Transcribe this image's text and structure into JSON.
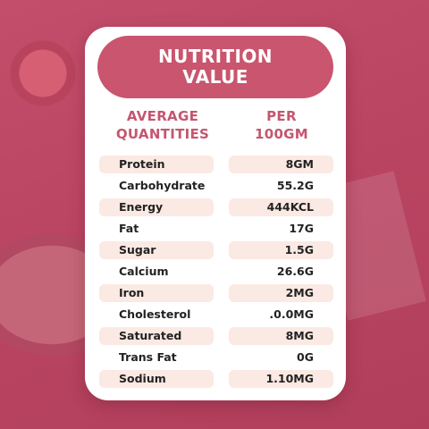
{
  "title": {
    "line1": "NUTRITION",
    "line2": "VALUE"
  },
  "headers": {
    "left_line1": "AVERAGE",
    "left_line2": "QUANTITIES",
    "right_line1": "PER",
    "right_line2": "100GM"
  },
  "rows": [
    {
      "name": "Protein",
      "value": "8GM",
      "shaded": true
    },
    {
      "name": "Carbohydrate",
      "value": "55.2G",
      "shaded": false
    },
    {
      "name": "Energy",
      "value": "444KCL",
      "shaded": true
    },
    {
      "name": "Fat",
      "value": "17G",
      "shaded": false
    },
    {
      "name": "Sugar",
      "value": "1.5G",
      "shaded": true
    },
    {
      "name": "Calcium",
      "value": "26.6G",
      "shaded": false
    },
    {
      "name": "Iron",
      "value": "2MG",
      "shaded": true
    },
    {
      "name": "Cholesterol",
      "value": ".0.0MG",
      "shaded": false
    },
    {
      "name": "Saturated",
      "value": "8MG",
      "shaded": true
    },
    {
      "name": "Trans Fat",
      "value": "0G",
      "shaded": false
    },
    {
      "name": "Sodium",
      "value": "1.10MG",
      "shaded": true
    }
  ],
  "colors": {
    "background": "#c04a67",
    "title_bar": "#c9556f",
    "header_text": "#c45670",
    "row_shade": "#fbe9e3"
  }
}
